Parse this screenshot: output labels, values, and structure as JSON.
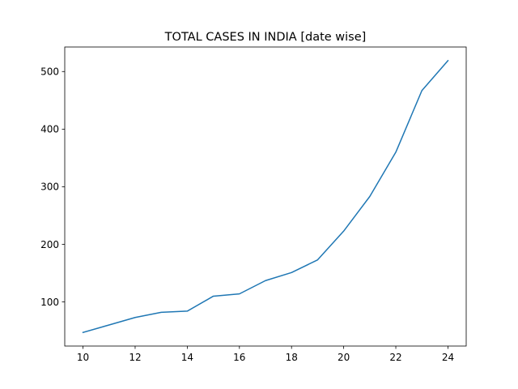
{
  "chart_data": {
    "type": "line",
    "title": "TOTAL CASES IN INDIA [date wise]",
    "xlabel": "",
    "ylabel": "",
    "x": [
      10,
      11,
      12,
      13,
      14,
      15,
      16,
      17,
      18,
      19,
      20,
      21,
      22,
      23,
      24
    ],
    "series": [
      {
        "values": [
          47,
          60,
          73,
          82,
          84,
          110,
          114,
          137,
          151,
          173,
          223,
          283,
          360,
          467,
          519
        ]
      }
    ],
    "xlim": [
      9.3,
      24.7
    ],
    "ylim": [
      23.4,
      542.6
    ],
    "xticks": [
      10,
      12,
      14,
      16,
      18,
      20,
      22,
      24
    ],
    "yticks": [
      100,
      200,
      300,
      400,
      500
    ],
    "grid": false,
    "legend": "none",
    "colors": {
      "line": "#1f77b4",
      "axes": "#000000",
      "background": "#ffffff"
    }
  }
}
